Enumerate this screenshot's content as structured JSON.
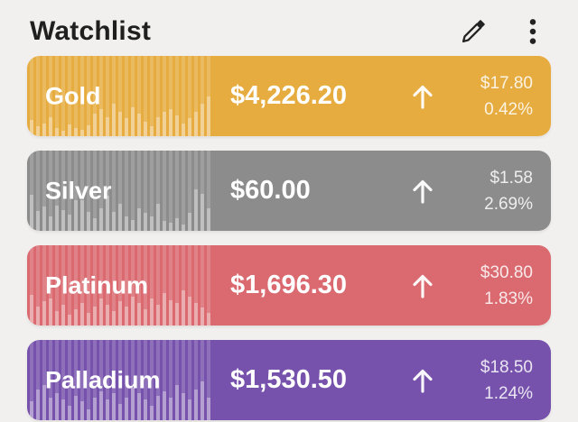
{
  "header": {
    "title": "Watchlist"
  },
  "icons": {
    "edit": "pencil-icon",
    "menu": "kebab-menu-icon",
    "row_arrow": "up-arrow-icon"
  },
  "colors": {
    "background": "#F2F0EF",
    "header_text": "#1F1F1F",
    "row_text": "#FFFFFF",
    "gold": "#E6AC40",
    "silver": "#8C8C8C",
    "platinum": "#DA6A70",
    "palladium": "#7652AC"
  },
  "watchlist": {
    "rows": [
      {
        "name": "Gold",
        "price": "$4,226.20",
        "direction": "up",
        "change_amount": "$17.80",
        "change_percent": "0.42%",
        "color": "#E6AC40",
        "sparkline": [
          20,
          12,
          16,
          24,
          10,
          7,
          15,
          10,
          8,
          14,
          28,
          34,
          24,
          40,
          30,
          22,
          36,
          28,
          18,
          12,
          24,
          30,
          34,
          26,
          16,
          22,
          30,
          40,
          50
        ]
      },
      {
        "name": "Silver",
        "price": "$60.00",
        "direction": "up",
        "change_amount": "$1.58",
        "change_percent": "2.69%",
        "color": "#8C8C8C",
        "sparkline": [
          45,
          25,
          30,
          18,
          32,
          26,
          20,
          38,
          38,
          24,
          16,
          28,
          44,
          24,
          34,
          18,
          14,
          28,
          22,
          18,
          34,
          12,
          10,
          16,
          8,
          22,
          52,
          46,
          28
        ]
      },
      {
        "name": "Platinum",
        "price": "$1,696.30",
        "direction": "up",
        "change_amount": "$30.80",
        "change_percent": "1.83%",
        "color": "#DA6A70",
        "sparkline": [
          38,
          24,
          30,
          34,
          18,
          26,
          14,
          20,
          28,
          16,
          24,
          34,
          26,
          18,
          30,
          24,
          36,
          28,
          20,
          34,
          26,
          40,
          32,
          28,
          44,
          36,
          28,
          22,
          16
        ]
      },
      {
        "name": "Palladium",
        "price": "$1,530.50",
        "direction": "up",
        "change_amount": "$18.50",
        "change_percent": "1.24%",
        "color": "#7652AC",
        "sparkline": [
          24,
          38,
          44,
          28,
          34,
          26,
          18,
          30,
          24,
          14,
          28,
          36,
          26,
          34,
          20,
          28,
          40,
          34,
          26,
          18,
          30,
          36,
          28,
          44,
          34,
          26,
          38,
          48,
          28
        ]
      }
    ]
  }
}
